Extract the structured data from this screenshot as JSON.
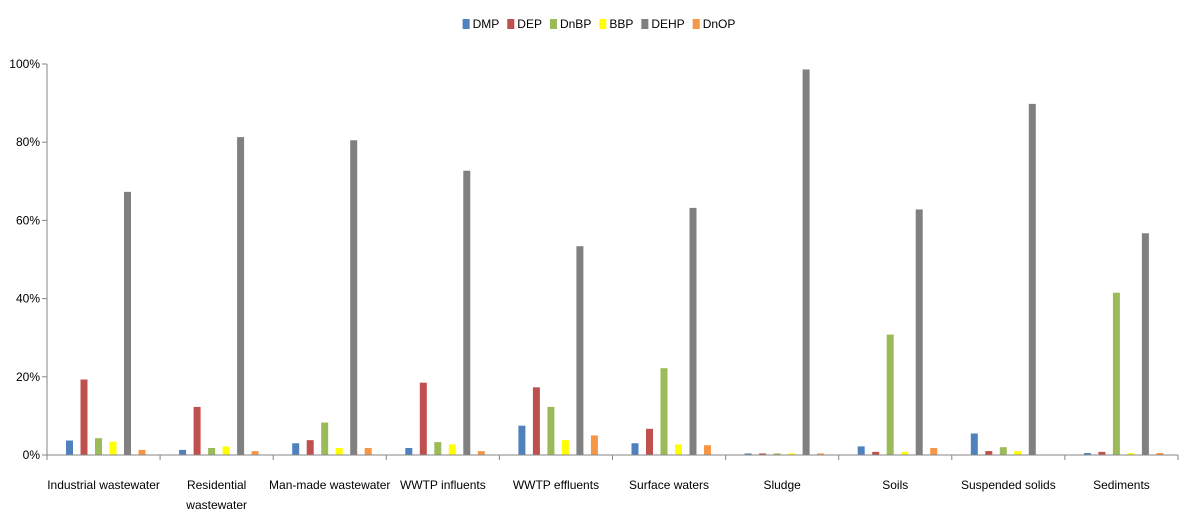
{
  "chart_data": {
    "type": "bar",
    "title": "",
    "xlabel": "",
    "ylabel": "",
    "ylim": [
      0,
      100
    ],
    "yticks": [
      "0%",
      "20%",
      "40%",
      "60%",
      "80%",
      "100%"
    ],
    "grid": false,
    "legend_position": "top",
    "categories": [
      [
        "Industrial wastewater"
      ],
      [
        "Residential",
        "wastewater"
      ],
      [
        "Man-made wastewater"
      ],
      [
        "WWTP influents"
      ],
      [
        "WWTP effluents"
      ],
      [
        "Surface waters"
      ],
      [
        "Sludge"
      ],
      [
        "Soils"
      ],
      [
        "Suspended solids"
      ],
      [
        "Sediments"
      ]
    ],
    "series": [
      {
        "name": "DMP",
        "color": "#4F81BD",
        "values": [
          3.7,
          1.3,
          3.0,
          1.8,
          7.5,
          3.0,
          0.4,
          2.2,
          5.5,
          0.5
        ]
      },
      {
        "name": "DEP",
        "color": "#C0504D",
        "values": [
          19.3,
          12.3,
          3.8,
          18.5,
          17.3,
          6.7,
          0.4,
          0.8,
          1.0,
          0.8
        ]
      },
      {
        "name": "DnBP",
        "color": "#9BBB59",
        "values": [
          4.3,
          1.8,
          8.3,
          3.3,
          12.3,
          22.2,
          0.4,
          30.8,
          2.0,
          41.5
        ]
      },
      {
        "name": "BBP",
        "color": "#FFFF00",
        "values": [
          3.4,
          2.2,
          1.8,
          2.7,
          3.8,
          2.7,
          0.4,
          0.8,
          1.0,
          0.5
        ]
      },
      {
        "name": "DEHP",
        "color": "#808080",
        "values": [
          67.3,
          81.3,
          80.5,
          72.7,
          53.4,
          63.2,
          98.6,
          62.8,
          89.8,
          56.7
        ]
      },
      {
        "name": "DnOP",
        "color": "#F79646",
        "values": [
          1.3,
          1.0,
          1.8,
          1.0,
          5.0,
          2.5,
          0.4,
          1.8,
          0.0,
          0.5
        ]
      }
    ]
  }
}
